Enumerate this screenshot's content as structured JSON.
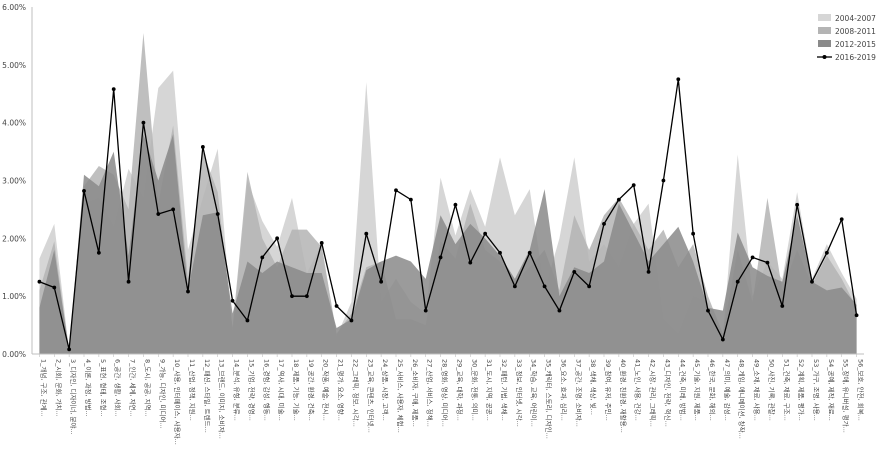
{
  "chart_data": {
    "type": "area",
    "title": "",
    "xlabel": "",
    "ylabel": "",
    "ylim": [
      0,
      6
    ],
    "y_ticks": [
      "0.00%",
      "1.00%",
      "2.00%",
      "3.00%",
      "4.00%",
      "5.00%",
      "6.00%"
    ],
    "grid": false,
    "legend_position": "top-right",
    "categories": [
      "1_개념, 구조, 관계...",
      "2_시회, 문화, 가치...",
      "3_디자인, 디자이너, 분야...",
      "4_이론, 과정, 방법...",
      "5_표현, 형태, 조형...",
      "6_공간, 생활, 사회...",
      "7_인간, 세계, 자연...",
      "8_도시, 공공, 지역...",
      "9_가능, 디자인, 미디어...",
      "10_사용, 인터페이스, 사용자...",
      "11_산업, 정책, 지원...",
      "12_패션, 스타일, 트렌드...",
      "13_브랜드, 이미지, 소비자...",
      "14_분석, 유형, 분류...",
      "15_기업, 전략, 경영...",
      "16_경험, 감성, 행동...",
      "17_역사, 시대, 미술...",
      "18_제품, 기능, 기술...",
      "19_공간, 환경, 건축...",
      "20_작품, 예술, 전시...",
      "21_평가, 요소, 영향...",
      "22_그래픽, 정보, 시각...",
      "23_교육, 콘텐츠, 인터넷...",
      "24_상품, 시장, 고객...",
      "25_서비스, 사용자, 체험...",
      "26_소비자, 구매, 제품...",
      "27_산업, 서비스, 정책...",
      "28_영화, 영상, 미디어...",
      "29_교육, 대학, 과정...",
      "30_문화, 전통, 의미...",
      "31_도시, 지역, 공공...",
      "32_패턴, 기법, 색채...",
      "33_정보, 인터넷, 시각...",
      "34_학습, 교육, 어린이...",
      "35_캐릭터, 스토리, 디자인...",
      "36_요소, 효과, 심리...",
      "37_공간, 조명, 소비자...",
      "38_색채, 색상, 빛...",
      "39_참여, 유저, 주민...",
      "40_환경, 친환경, 재활용...",
      "41_노인, 사용, 건강...",
      "42_시장, 관리, 그래픽...",
      "43_디자인, 전략, 혁신...",
      "44_건축, 미래, 방법...",
      "45_기술, 지원, 제품...",
      "46_한국, 문화, 해외...",
      "47_의미, 예술, 감성...",
      "48_게임, 애니메이션, 창작...",
      "49_소재, 재료, 사용...",
      "50_사진, 기록, 관찰...",
      "51_건축, 재료, 구조...",
      "52_계획, 제품, 평가...",
      "53_가구, 조명, 사용...",
      "54_공예, 제작, 재료...",
      "55_장애, 유니버설, 평가...",
      "56_보호, 안전, 회복..."
    ],
    "series": [
      {
        "name": "2004-2007",
        "color": "#d6d6d6",
        "values": [
          1.65,
          2.25,
          0.05,
          2.6,
          2.7,
          2.2,
          3.2,
          2.7,
          4.6,
          4.9,
          1.8,
          2.7,
          3.55,
          0.35,
          3.0,
          2.3,
          1.85,
          2.7,
          1.4,
          1.9,
          0.3,
          0.9,
          4.7,
          0.9,
          1.3,
          0.9,
          0.7,
          3.05,
          2.05,
          2.85,
          2.2,
          3.4,
          2.4,
          2.85,
          1.1,
          2.0,
          3.4,
          1.6,
          1.9,
          1.5,
          2.25,
          2.6,
          0.6,
          0.35,
          1.0,
          0.9,
          0.3,
          3.45,
          1.0,
          1.6,
          1.3,
          2.8,
          1.3,
          1.9,
          1.4,
          0.95
        ]
      },
      {
        "name": "2008-2011",
        "color": "#b4b4b4",
        "values": [
          1.1,
          1.95,
          0.05,
          2.9,
          3.25,
          3.1,
          2.5,
          5.55,
          2.6,
          3.95,
          1.3,
          3.5,
          2.8,
          0.45,
          3.15,
          2.0,
          1.5,
          2.15,
          2.15,
          1.85,
          0.35,
          0.7,
          1.5,
          1.6,
          0.6,
          0.6,
          0.5,
          1.95,
          1.65,
          2.6,
          1.8,
          1.6,
          1.25,
          1.5,
          1.8,
          1.1,
          2.4,
          1.8,
          2.4,
          2.7,
          2.25,
          1.8,
          2.15,
          1.5,
          1.9,
          1.0,
          0.35,
          1.8,
          0.9,
          2.7,
          1.1,
          1.8,
          1.2,
          1.7,
          1.3,
          0.8
        ]
      },
      {
        "name": "2012-2015",
        "color": "#8a8a8a",
        "values": [
          0.8,
          1.8,
          0.05,
          3.1,
          2.9,
          3.5,
          1.7,
          3.8,
          3.0,
          3.8,
          1.1,
          2.4,
          2.45,
          0.7,
          1.6,
          1.4,
          1.6,
          1.5,
          1.4,
          1.4,
          0.45,
          0.6,
          1.45,
          1.6,
          1.7,
          1.6,
          1.3,
          2.4,
          1.9,
          2.25,
          2.0,
          1.7,
          1.3,
          1.8,
          2.85,
          1.0,
          1.5,
          1.4,
          1.6,
          2.6,
          2.1,
          1.6,
          1.9,
          2.2,
          1.6,
          0.8,
          0.75,
          2.1,
          1.5,
          1.35,
          1.25,
          2.4,
          1.25,
          1.1,
          1.15,
          0.85
        ]
      },
      {
        "name": "2016-2019",
        "color": "#000000",
        "values": [
          1.25,
          1.15,
          0.08,
          2.82,
          1.75,
          4.58,
          1.25,
          4.0,
          2.42,
          2.5,
          1.08,
          3.58,
          2.42,
          0.92,
          0.58,
          1.67,
          2.0,
          1.0,
          1.0,
          1.92,
          0.83,
          0.58,
          2.08,
          1.25,
          2.83,
          2.67,
          0.75,
          1.67,
          2.58,
          1.58,
          2.08,
          1.75,
          1.17,
          1.75,
          1.17,
          0.75,
          1.42,
          1.17,
          2.25,
          2.67,
          2.92,
          1.42,
          3.0,
          4.75,
          2.08,
          0.75,
          0.25,
          1.25,
          1.67,
          1.58,
          0.83,
          2.58,
          1.25,
          1.75,
          2.33,
          0.67
        ]
      }
    ]
  }
}
